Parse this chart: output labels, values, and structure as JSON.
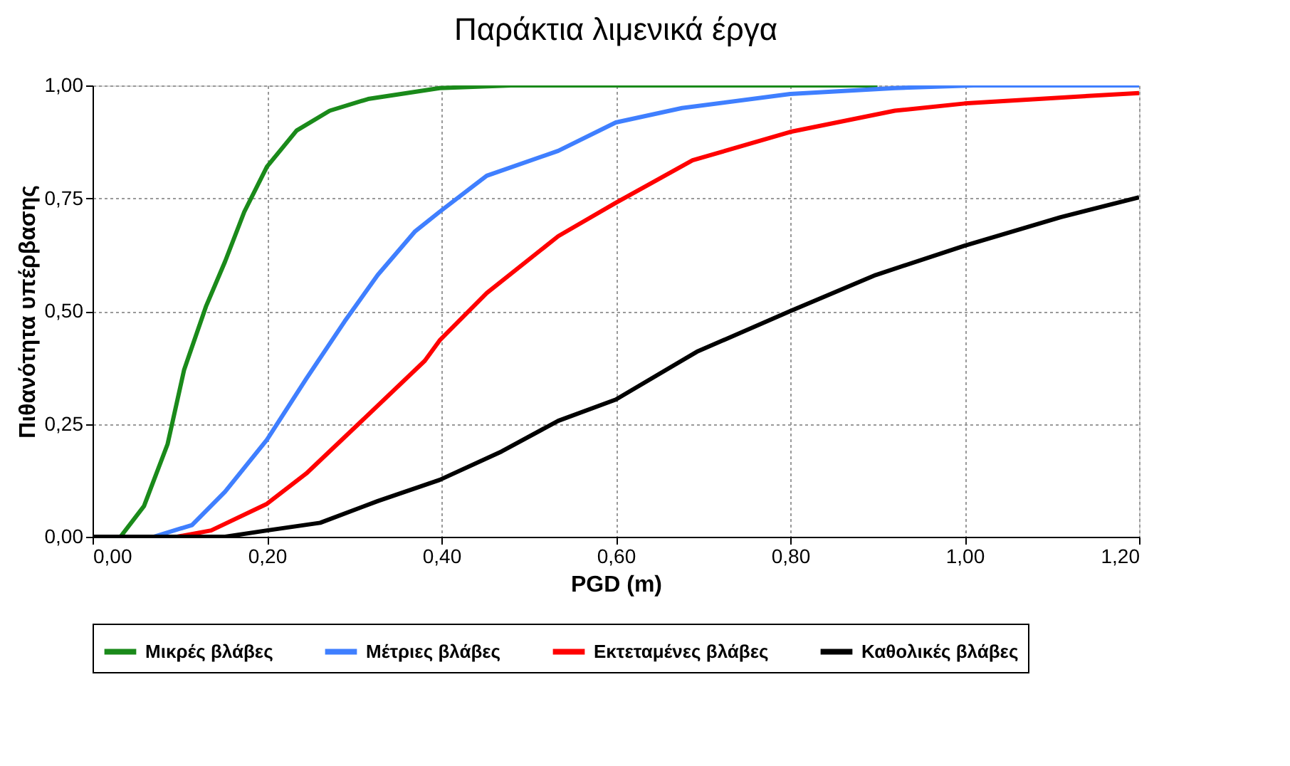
{
  "chart_data": {
    "type": "line",
    "title": "Παράκτια λιμενικά έργα",
    "xlabel": "PGD (m)",
    "ylabel": "Πιθανότητα υπέρβασης",
    "xlim": [
      0,
      1.2
    ],
    "ylim": [
      0,
      1
    ],
    "xticks": [
      {
        "value": 0,
        "label": "0,00"
      },
      {
        "value": 0.2,
        "label": "0,20"
      },
      {
        "value": 0.4,
        "label": "0,40"
      },
      {
        "value": 0.6,
        "label": "0,60"
      },
      {
        "value": 0.8,
        "label": "0,80"
      },
      {
        "value": 1.0,
        "label": "1,00"
      },
      {
        "value": 1.2,
        "label": "1,20"
      }
    ],
    "yticks": [
      {
        "value": 0,
        "label": "0,00"
      },
      {
        "value": 0.25,
        "label": "0,25"
      },
      {
        "value": 0.5,
        "label": "0,50"
      },
      {
        "value": 0.75,
        "label": "0,75"
      },
      {
        "value": 1.0,
        "label": "1,00"
      }
    ],
    "grid": true,
    "legend": "bottom",
    "marker": "none",
    "line_style": "solid",
    "series": [
      {
        "name": "Μικρές βλάβες",
        "color": "#1a8a1a",
        "x": [
          0,
          0.032,
          0.059,
          0.086,
          0.105,
          0.13,
          0.152,
          0.174,
          0.2,
          0.234,
          0.272,
          0.316,
          0.398,
          0.48,
          0.9
        ],
        "values": [
          0,
          0,
          0.068,
          0.205,
          0.37,
          0.51,
          0.61,
          0.72,
          0.82,
          0.9,
          0.944,
          0.97,
          0.994,
          1.0,
          1.0
        ]
      },
      {
        "name": "Μέτριες βλάβες",
        "color": "#3f7fff",
        "x": [
          0,
          0.07,
          0.114,
          0.152,
          0.2,
          0.245,
          0.289,
          0.327,
          0.37,
          0.398,
          0.452,
          0.534,
          0.6,
          0.676,
          0.8,
          0.92,
          1.01,
          1.2
        ],
        "values": [
          0,
          0,
          0.026,
          0.1,
          0.215,
          0.35,
          0.477,
          0.58,
          0.677,
          0.72,
          0.8,
          0.855,
          0.918,
          0.95,
          0.981,
          0.994,
          1.0,
          1.0
        ]
      },
      {
        "name": "Εκτεταμένες βλάβες",
        "color": "#ff0000",
        "x": [
          0,
          0.097,
          0.136,
          0.2,
          0.245,
          0.305,
          0.381,
          0.398,
          0.452,
          0.534,
          0.6,
          0.688,
          0.8,
          0.92,
          1.0,
          1.136,
          1.2
        ],
        "values": [
          0,
          0,
          0.014,
          0.073,
          0.14,
          0.25,
          0.39,
          0.435,
          0.54,
          0.666,
          0.74,
          0.834,
          0.897,
          0.944,
          0.96,
          0.976,
          0.983
        ]
      },
      {
        "name": "Καθολικές βλάβες",
        "color": "#000000",
        "x": [
          0,
          0.152,
          0.2,
          0.261,
          0.327,
          0.398,
          0.469,
          0.534,
          0.6,
          0.693,
          0.8,
          0.898,
          1.0,
          1.11,
          1.2
        ],
        "values": [
          0,
          0,
          0.014,
          0.031,
          0.079,
          0.126,
          0.189,
          0.257,
          0.304,
          0.41,
          0.5,
          0.58,
          0.645,
          0.708,
          0.752
        ]
      }
    ]
  }
}
